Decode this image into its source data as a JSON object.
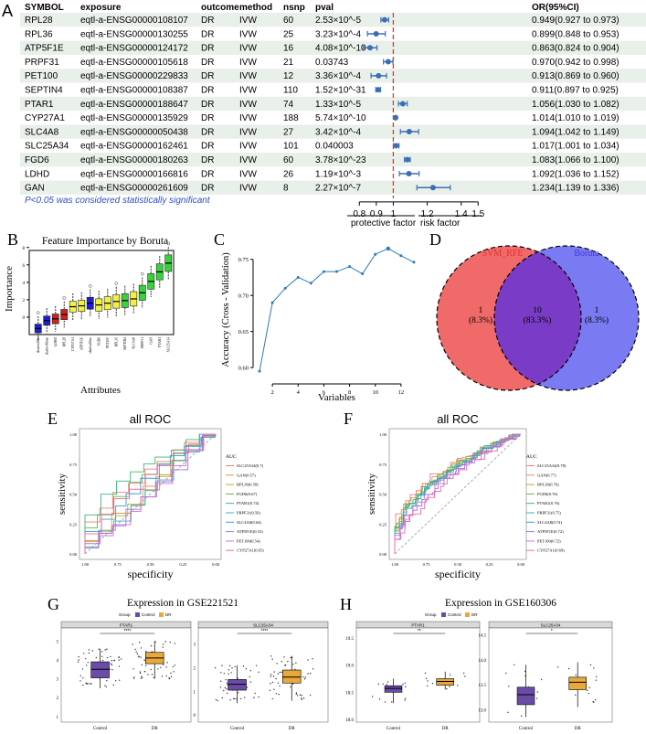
{
  "panel_labels": {
    "A": "A",
    "B": "B",
    "C": "C",
    "D": "D",
    "E": "E",
    "F": "F",
    "G": "G",
    "H": "H"
  },
  "forest": {
    "headers": {
      "symbol": "SYMBOL",
      "exposure": "exposure",
      "outcome": "outcome",
      "method": "method",
      "nsnp": "nsnp",
      "pval": "pval",
      "or": "OR(95%CI)"
    },
    "rows": [
      {
        "symbol": "RPL28",
        "exposure": "eqtl-a-ENSG00000108107",
        "outcome": "DR",
        "method": "IVW",
        "nsnp": "60",
        "pval": "2.53×10^-5",
        "or_text": "0.949(0.927 to 0.973)",
        "or": 0.949,
        "lo": 0.927,
        "hi": 0.973
      },
      {
        "symbol": "RPL36",
        "exposure": "eqtl-a-ENSG00000130255",
        "outcome": "DR",
        "method": "IVW",
        "nsnp": "25",
        "pval": "3.23×10^-4",
        "or_text": "0.899(0.848 to 0.953)",
        "or": 0.899,
        "lo": 0.848,
        "hi": 0.953
      },
      {
        "symbol": "ATP5F1E",
        "exposure": "eqtl-a-ENSG00000124172",
        "outcome": "DR",
        "method": "IVW",
        "nsnp": "16",
        "pval": "4.08×10^-10",
        "or_text": "0.863(0.824 to 0.904)",
        "or": 0.863,
        "lo": 0.824,
        "hi": 0.904
      },
      {
        "symbol": "PRPF31",
        "exposure": "eqtl-a-ENSG00000105618",
        "outcome": "DR",
        "method": "IVW",
        "nsnp": "21",
        "pval": "0.03743",
        "or_text": "0.970(0.942 to 0.998)",
        "or": 0.97,
        "lo": 0.942,
        "hi": 0.998
      },
      {
        "symbol": "PET100",
        "exposure": "eqtl-a-ENSG00000229833",
        "outcome": "DR",
        "method": "IVW",
        "nsnp": "12",
        "pval": "3.36×10^-4",
        "or_text": "0.913(0.869 to 0.960)",
        "or": 0.913,
        "lo": 0.869,
        "hi": 0.96
      },
      {
        "symbol": "SEPTIN4",
        "exposure": "eqtl-a-ENSG00000108387",
        "outcome": "DR",
        "method": "IVW",
        "nsnp": "110",
        "pval": "1.52×10^-31",
        "or_text": "0.911(0.897 to 0.925)",
        "or": 0.911,
        "lo": 0.897,
        "hi": 0.925
      },
      {
        "symbol": "PTAR1",
        "exposure": "eqtl-a-ENSG00000188647",
        "outcome": "DR",
        "method": "IVW",
        "nsnp": "74",
        "pval": "1.33×10^-5",
        "or_text": "1.056(1.030 to 1.082)",
        "or": 1.056,
        "lo": 1.03,
        "hi": 1.082
      },
      {
        "symbol": "CYP27A1",
        "exposure": "eqtl-a-ENSG00000135929",
        "outcome": "DR",
        "method": "IVW",
        "nsnp": "188",
        "pval": "5.74×10^-10",
        "or_text": "1.014(1.010 to 1.019)",
        "or": 1.014,
        "lo": 1.01,
        "hi": 1.019
      },
      {
        "symbol": "SLC4A8",
        "exposure": "eqtl-a-ENSG00000050438",
        "outcome": "DR",
        "method": "IVW",
        "nsnp": "27",
        "pval": "3.42×10^-4",
        "or_text": "1.094(1.042 to 1.149)",
        "or": 1.094,
        "lo": 1.042,
        "hi": 1.149
      },
      {
        "symbol": "SLC25A34",
        "exposure": "eqtl-a-ENSG00000162461",
        "outcome": "DR",
        "method": "IVW",
        "nsnp": "101",
        "pval": "0.040003",
        "or_text": "1.017(1.001 to 1.034)",
        "or": 1.017,
        "lo": 1.001,
        "hi": 1.034
      },
      {
        "symbol": "FGD6",
        "exposure": "eqtl-a-ENSG00000180263",
        "outcome": "DR",
        "method": "IVW",
        "nsnp": "60",
        "pval": "3.78×10^-23",
        "or_text": "1.083(1.066 to 1.100)",
        "or": 1.083,
        "lo": 1.066,
        "hi": 1.1
      },
      {
        "symbol": "LDHD",
        "exposure": "eqtl-a-ENSG00000166816",
        "outcome": "DR",
        "method": "IVW",
        "nsnp": "26",
        "pval": "1.19×10^-3",
        "or_text": "1.092(1.036 to 1.152)",
        "or": 1.092,
        "lo": 1.036,
        "hi": 1.152
      },
      {
        "symbol": "GAN",
        "exposure": "eqtl-a-ENSG00000261609",
        "outcome": "DR",
        "method": "IVW",
        "nsnp": "8",
        "pval": "2.27×10^-7",
        "or_text": "1.234(1.139 to 1.336)",
        "or": 1.234,
        "lo": 1.139,
        "hi": 1.336
      }
    ],
    "note": "P<0.05 was considered statistically significant",
    "axis_ticks": [
      "0.8",
      "0.9",
      "1",
      "1.2",
      "1.4",
      "1.5"
    ],
    "axis_tick_values": [
      0.8,
      0.9,
      1.0,
      1.2,
      1.4,
      1.5
    ],
    "xlim": [
      0.75,
      1.52
    ],
    "protective_label": "protective factor",
    "risk_label": "risk factor",
    "colors": {
      "point": "#3a6fb5",
      "refline": "#e2382c",
      "stripe": "#e9efe9"
    }
  },
  "chart_data": [
    {
      "type": "bar",
      "id": "B",
      "title": "Feature Importance by Boruta",
      "xlabel": "Attributes",
      "ylabel": "Importance",
      "ytick_labels": [
        "0",
        "2",
        "4",
        "6",
        "8"
      ],
      "ylim": [
        -2,
        8.5
      ],
      "categories": [
        "shadowMin",
        "shadowMean",
        "LDHD",
        "RPL28",
        "CYP27A1",
        "ATP5F1E",
        "shadowMax",
        "FGD6",
        "PET100",
        "RPL36",
        "SEPTIN4",
        "SLC4A8",
        "PRPF31",
        "GAN",
        "PTAR1",
        "SLC25A34"
      ],
      "values": [
        -1.3,
        -0.4,
        -0.2,
        0.3,
        1.2,
        1.3,
        1.6,
        1.4,
        1.6,
        1.8,
        1.9,
        2.1,
        2.8,
        4.1,
        5.2,
        6.2
      ],
      "colors": [
        "#1f1fcf",
        "#1f1fcf",
        "#d21f1f",
        "#d21f1f",
        "#f2f23a",
        "#f2f23a",
        "#1f1fcf",
        "#f2f23a",
        "#f2f23a",
        "#f2f23a",
        "#3ad23a",
        "#f2f23a",
        "#3ad23a",
        "#3ad23a",
        "#3ad23a",
        "#3ad23a"
      ]
    },
    {
      "type": "line",
      "id": "C",
      "xlabel": "Variables",
      "ylabel": "Accuracy (Cross - Validation)",
      "x": [
        1,
        2,
        3,
        4,
        5,
        6,
        7,
        8,
        9,
        10,
        11,
        12,
        13
      ],
      "values": [
        0.595,
        0.69,
        0.71,
        0.725,
        0.717,
        0.733,
        0.733,
        0.74,
        0.73,
        0.757,
        0.765,
        0.755,
        0.746
      ],
      "xticks": [
        "2",
        "4",
        "6",
        "8",
        "10",
        "12"
      ],
      "yticks": [
        "0.60",
        "0.65",
        "0.70",
        "0.75"
      ],
      "xlim": [
        0.5,
        13.5
      ],
      "ylim": [
        0.585,
        0.775
      ],
      "color": "#2b7bb9"
    },
    {
      "type": "venn",
      "id": "D",
      "sets": [
        "SVM_RFE",
        "Boruta"
      ],
      "left_only": "1",
      "left_pct": "(8.3%)",
      "both": "10",
      "both_pct": "(83.3%)",
      "right_only": "1",
      "right_pct": "(8.3%)",
      "colors": {
        "left": "#f06a6a",
        "right": "#7a7af2",
        "overlap": "#7a3cc7",
        "left_label": "#e03030",
        "right_label": "#3b3bd9"
      }
    },
    {
      "type": "line",
      "id": "E",
      "title": "all ROC",
      "xlabel": "specificity",
      "ylabel": "sensitivity",
      "xticks": [
        "1.00",
        "0.75",
        "0.50",
        "0.25",
        "0.00"
      ],
      "yticks": [
        "0.00",
        "0.25",
        "0.50",
        "0.75",
        "1.00"
      ],
      "legend_title": "AUC",
      "series": [
        {
          "name": "SLC25A34(0.7)",
          "color": "#f47a7a",
          "auc": 0.7
        },
        {
          "name": "GAN(0.57)",
          "color": "#e39a4a",
          "auc": 0.57
        },
        {
          "name": "RPL36(0.58)",
          "color": "#b8a83a",
          "auc": 0.58
        },
        {
          "name": "FGD6(0.67)",
          "color": "#6bb83a",
          "auc": 0.67
        },
        {
          "name": "PTAR1(0.74)",
          "color": "#3ab87a",
          "auc": 0.74
        },
        {
          "name": "PRPF31(0.56)",
          "color": "#3ab8b0",
          "auc": 0.56
        },
        {
          "name": "SLC4A8(0.64)",
          "color": "#3a9ad8",
          "auc": 0.64
        },
        {
          "name": "ATP5F1E(0.53)",
          "color": "#8a7ae8",
          "auc": 0.53
        },
        {
          "name": "PET100(0.54)",
          "color": "#d66ad8",
          "auc": 0.54
        },
        {
          "name": "CYP27A1(0.65)",
          "color": "#f06aa8",
          "auc": 0.65
        }
      ]
    },
    {
      "type": "line",
      "id": "F",
      "title": "all ROC",
      "xlabel": "specificity",
      "ylabel": "sensitivity",
      "xticks": [
        "1.00",
        "0.75",
        "0.50",
        "0.25",
        "0.00"
      ],
      "yticks": [
        "0.00",
        "0.25",
        "0.50",
        "0.75",
        "1.00"
      ],
      "legend_title": "AUC",
      "series": [
        {
          "name": "SLC25A34(0.78)",
          "color": "#f47a7a",
          "auc": 0.78
        },
        {
          "name": "GAN(0.77)",
          "color": "#e39a4a",
          "auc": 0.77
        },
        {
          "name": "RPL36(0.76)",
          "color": "#b8a83a",
          "auc": 0.76
        },
        {
          "name": "FGD6(0.76)",
          "color": "#6bb83a",
          "auc": 0.76
        },
        {
          "name": "PTAR1(0.76)",
          "color": "#3ab87a",
          "auc": 0.76
        },
        {
          "name": "PRPF31(0.75)",
          "color": "#3ab8b0",
          "auc": 0.75
        },
        {
          "name": "SLC4A8(0.74)",
          "color": "#3a9ad8",
          "auc": 0.74
        },
        {
          "name": "ATP5F1E(0.72)",
          "color": "#8a7ae8",
          "auc": 0.72
        },
        {
          "name": "PET100(0.72)",
          "color": "#d66ad8",
          "auc": 0.72
        },
        {
          "name": "CYP27A1(0.69)",
          "color": "#f06aa8",
          "auc": 0.69
        }
      ]
    },
    {
      "type": "box",
      "id": "G",
      "title": "Expression in GSE221521",
      "legend_label": "Group",
      "groups": [
        "Control",
        "DR"
      ],
      "group_colors": [
        "#6a4ca8",
        "#e8a83a"
      ],
      "panels": [
        {
          "gene": "PTAR1",
          "sig": "****",
          "yticks": [
            "1",
            "2",
            "3",
            "4",
            "5"
          ],
          "ylim": [
            0.7,
            5.6
          ],
          "boxes": [
            {
              "q1": 3.05,
              "med": 3.5,
              "q3": 3.9,
              "lo": 2.5,
              "hi": 4.6
            },
            {
              "q1": 3.8,
              "med": 4.1,
              "q3": 4.4,
              "lo": 3.0,
              "hi": 5.0
            }
          ]
        },
        {
          "gene": "SLC25A34",
          "sig": "****",
          "yticks": [
            "0",
            "1",
            "2",
            "3"
          ],
          "ylim": [
            -0.3,
            3.6
          ],
          "boxes": [
            {
              "q1": 1.05,
              "med": 1.3,
              "q3": 1.5,
              "lo": 0.5,
              "hi": 2.1
            },
            {
              "q1": 1.35,
              "med": 1.6,
              "q3": 1.9,
              "lo": 0.6,
              "hi": 2.5
            }
          ]
        }
      ],
      "xtick_labels": [
        "Control",
        "DR"
      ]
    },
    {
      "type": "box",
      "id": "H",
      "title": "Expression in GSE160306",
      "legend_label": "Group",
      "groups": [
        "Control",
        "DR"
      ],
      "group_colors": [
        "#6a4ca8",
        "#e8a83a"
      ],
      "panels": [
        {
          "gene": "PTAR1",
          "sig": "**",
          "yticks": [
            "18.0",
            "18.5",
            "19.0",
            "19.5"
          ],
          "ylim": [
            17.95,
            19.65
          ],
          "boxes": [
            {
              "q1": 18.5,
              "med": 18.57,
              "q3": 18.62,
              "lo": 18.3,
              "hi": 18.75
            },
            {
              "q1": 18.63,
              "med": 18.7,
              "q3": 18.75,
              "lo": 18.55,
              "hi": 18.88
            }
          ]
        },
        {
          "gene": "SLC25A34",
          "sig": "*",
          "yticks": [
            "13.0",
            "13.5",
            "14.0",
            "14.5"
          ],
          "ylim": [
            12.75,
            14.6
          ],
          "boxes": [
            {
              "q1": 13.1,
              "med": 13.3,
              "q3": 13.45,
              "lo": 12.85,
              "hi": 13.9
            },
            {
              "q1": 13.4,
              "med": 13.55,
              "q3": 13.65,
              "lo": 13.05,
              "hi": 13.95
            }
          ]
        }
      ],
      "xtick_labels": [
        "Control",
        "DR"
      ]
    }
  ]
}
